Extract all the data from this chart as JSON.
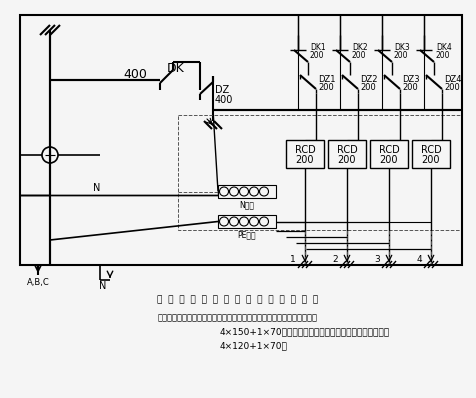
{
  "bg_color": "#f5f5f5",
  "line_color": "#000000",
  "dashed_color": "#555555",
  "title": "总  配  电  箱  及  分  路  漏  电  保  护  器  系  统  图",
  "note_line1": "注：上图为总配电箱前接线图，由电源接入总配电箱的电缆为橡套软电缆",
  "note_line2": "4×150+1×70，总配电箱连接各分配箱的电缆为橡套软电缆",
  "note_line3": "4×120+1×70．",
  "n_busbar_label": "N母排",
  "pe_busbar_label": "PE母排",
  "branch_dk_labels": [
    "DK1\n200",
    "DK2\n200",
    "DK3\n200",
    "DK4\n200"
  ],
  "branch_dz_labels": [
    "DZ1\n200",
    "DZ2\n200",
    "DZ3\n200",
    "DZ4\n200"
  ],
  "branch_rcd_labels": [
    "RCD\n200",
    "RCD\n200",
    "RCD\n200",
    "RCD\n200"
  ],
  "branch_numbers": [
    "1",
    "2",
    "3",
    "4"
  ]
}
